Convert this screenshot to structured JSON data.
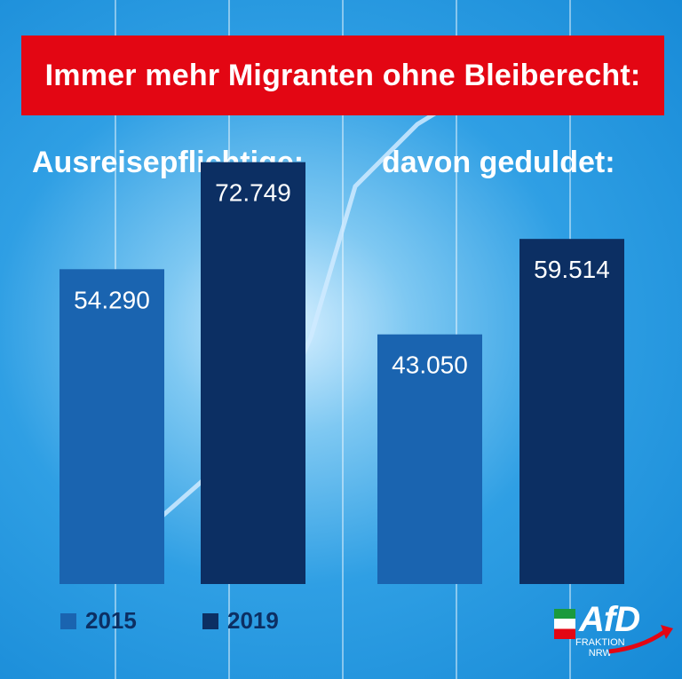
{
  "banner": {
    "title": "Immer mehr Migranten ohne Bleiberecht:"
  },
  "panels": [
    {
      "title": "Ausreisepflichtige:"
    },
    {
      "title": "davon geduldet:"
    }
  ],
  "legend": [
    {
      "label": "2015",
      "color": "#1a64b0"
    },
    {
      "label": "2019",
      "color": "#0c2f63"
    }
  ],
  "logo": {
    "text": "AfD",
    "sub1": "FRAKTION",
    "sub2": "NRW"
  },
  "colors": {
    "banner": "#e30613",
    "bar_2015": "#1a64b0",
    "bar_2019": "#0c2f63",
    "legend_text": "#0c2f63"
  },
  "chart_data": [
    {
      "type": "bar",
      "title": "Ausreisepflichtige:",
      "categories": [
        "2015",
        "2019"
      ],
      "values": [
        54290,
        72749
      ],
      "data_labels": [
        "54.290",
        "72.749"
      ],
      "ylim": [
        0,
        90000
      ]
    },
    {
      "type": "bar",
      "title": "davon geduldet:",
      "categories": [
        "2015",
        "2019"
      ],
      "values": [
        43050,
        59514
      ],
      "data_labels": [
        "43.050",
        "59.514"
      ],
      "ylim": [
        0,
        90000
      ]
    }
  ]
}
